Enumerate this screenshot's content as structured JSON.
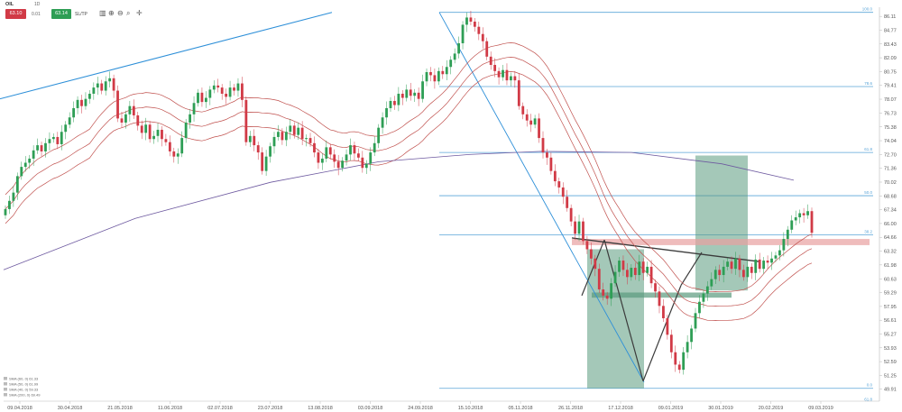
{
  "toolbar": {
    "symbol": "OIL",
    "timeframe": "1D",
    "sell_price": "63.10",
    "spread": "0.01",
    "buy_price": "63.14",
    "sltp_label": "SL/TP",
    "icons": [
      "bar-chart-icon",
      "zoom-in-icon",
      "zoom-out-icon",
      "search-icon",
      "crosshair-icon"
    ]
  },
  "colors": {
    "up": "#2e9e55",
    "down": "#d13a46",
    "sma": "#c0504d",
    "sma200": "#6e5aa0",
    "fib": "#5aa5d8",
    "trendline": "#2d8fd8",
    "neckline": "#3b3b3b",
    "box": "#5a9a7e",
    "resistance": "#e8a0a0"
  },
  "legend": [
    "SMA (60, 0) 61.33",
    "SMA (50, 0) 61.99",
    "SMA (40, 0) 59.33",
    "SMA (200, 0) 69.49"
  ],
  "fib_labels": [
    "100.0",
    "78.6",
    "61.8",
    "50.0",
    "38.2",
    "0.0",
    "61.8"
  ],
  "chart_data": {
    "type": "candlestick",
    "ylim": [
      48.75,
      87.0
    ],
    "xlim": [
      "2018-04-09",
      "2019-03-22"
    ],
    "y_ticks": [
      "86.11",
      "84.77",
      "83.43",
      "82.09",
      "80.75",
      "79.41",
      "78.07",
      "76.73",
      "75.38",
      "74.04",
      "72.70",
      "71.36",
      "70.02",
      "68.68",
      "67.34",
      "66.00",
      "64.66",
      "63.32",
      "61.98",
      "60.63",
      "59.29",
      "57.95",
      "56.61",
      "55.27",
      "53.93",
      "52.59",
      "51.25",
      "49.91"
    ],
    "x_ticks": [
      "09.04.2018",
      "30.04.2018",
      "21.05.2018",
      "11.06.2018",
      "02.07.2018",
      "23.07.2018",
      "13.08.2018",
      "03.09.2018",
      "24.09.2018",
      "15.10.2018",
      "05.11.2018",
      "26.11.2018",
      "17.12.2018",
      "09.01.2019",
      "30.01.2019",
      "20.02.2019",
      "09.03.2019"
    ],
    "closes": [
      67.4,
      68.2,
      69.0,
      70.6,
      71.5,
      71.9,
      72.3,
      73.1,
      73.6,
      73.0,
      73.8,
      74.2,
      74.4,
      73.7,
      74.9,
      75.6,
      76.3,
      77.2,
      78.0,
      77.4,
      78.1,
      78.6,
      79.2,
      79.6,
      78.9,
      79.8,
      80.1,
      78.9,
      76.2,
      75.8,
      76.6,
      77.4,
      76.5,
      75.5,
      74.8,
      75.6,
      74.2,
      74.5,
      75.1,
      74.2,
      73.9,
      73.0,
      72.5,
      72.8,
      74.3,
      75.8,
      76.6,
      77.7,
      78.7,
      77.8,
      78.2,
      79.0,
      79.4,
      79.2,
      78.6,
      78.3,
      79.2,
      78.9,
      79.6,
      78.0,
      73.9,
      74.5,
      73.6,
      72.9,
      71.1,
      72.5,
      73.5,
      74.4,
      74.9,
      74.1,
      74.9,
      75.5,
      74.6,
      75.3,
      74.2,
      74.3,
      73.8,
      72.9,
      71.9,
      72.3,
      73.4,
      72.7,
      72.0,
      71.4,
      72.1,
      72.7,
      73.6,
      72.8,
      72.4,
      71.4,
      71.8,
      72.9,
      73.8,
      75.3,
      76.3,
      77.2,
      77.9,
      77.5,
      78.6,
      78.2,
      79.0,
      78.4,
      78.7,
      78.1,
      79.8,
      80.7,
      80.4,
      79.8,
      80.8,
      80.5,
      81.2,
      81.9,
      82.5,
      83.5,
      85.3,
      86.0,
      85.6,
      85.1,
      84.4,
      83.7,
      82.2,
      81.4,
      80.8,
      80.2,
      80.9,
      79.9,
      80.3,
      79.9,
      77.4,
      76.6,
      76.0,
      75.6,
      76.2,
      74.3,
      72.9,
      72.4,
      71.1,
      70.1,
      69.5,
      68.6,
      67.5,
      66.2,
      65.0,
      66.2,
      64.3,
      63.5,
      62.6,
      61.6,
      59.6,
      59.0,
      58.7,
      60.2,
      61.3,
      62.4,
      61.5,
      60.8,
      61.7,
      61.0,
      62.3,
      61.2,
      61.8,
      60.2,
      59.4,
      58.0,
      56.8,
      55.2,
      53.5,
      52.3,
      51.8,
      53.5,
      54.5,
      55.8,
      57.3,
      58.4,
      59.2,
      59.9,
      60.6,
      61.5,
      61.0,
      61.8,
      62.3,
      61.6,
      62.6,
      61.5,
      60.8,
      61.8,
      61.2,
      62.5,
      61.6,
      62.4,
      62.2,
      62.6,
      62.9,
      63.4,
      64.5,
      65.4,
      66.3,
      66.6,
      67.0,
      66.8,
      67.2,
      65.1
    ]
  }
}
